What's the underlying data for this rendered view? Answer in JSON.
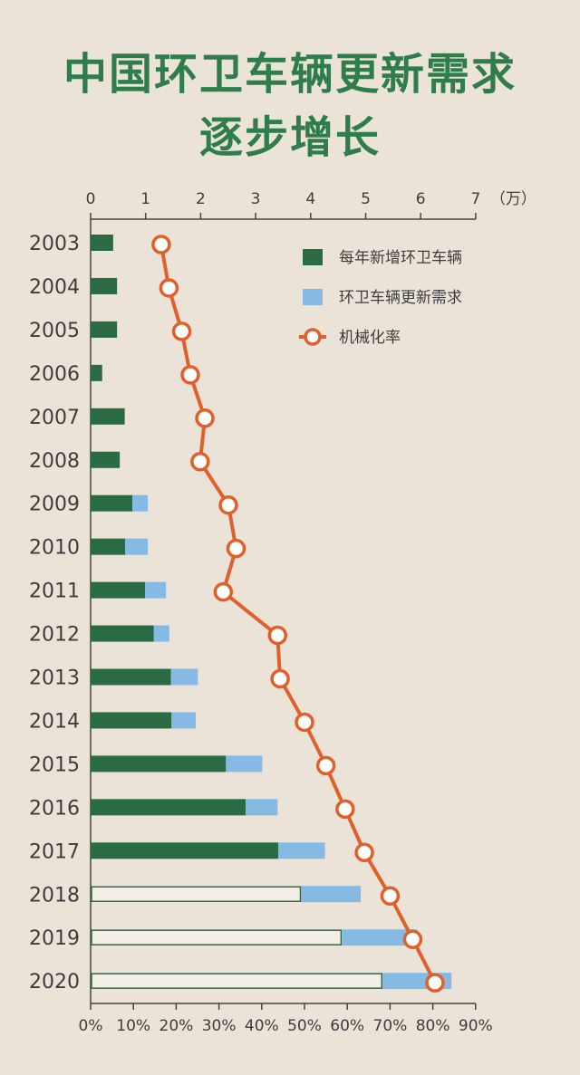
{
  "title_line1": "中国环卫车辆更新需求",
  "title_line2": "逐步增长",
  "colors": {
    "title": "#2e7d4a",
    "new_vehicles": "#2a6b45",
    "renewal": "#86b9e3",
    "rate": "#e0602b",
    "axis": "#444444",
    "background": "#ebe3d7"
  },
  "chart_data": {
    "type": "bar",
    "orientation": "horizontal",
    "stacked": true,
    "categories": [
      "2003",
      "2004",
      "2005",
      "2006",
      "2007",
      "2008",
      "2009",
      "2010",
      "2011",
      "2012",
      "2013",
      "2014",
      "2015",
      "2016",
      "2017",
      "2018",
      "2019",
      "2020"
    ],
    "top_axis": {
      "ticks": [
        "0",
        "1",
        "2",
        "3",
        "4",
        "5",
        "6",
        "7"
      ],
      "unit_label": "（万）",
      "range": [
        0,
        7
      ]
    },
    "bottom_axis": {
      "ticks": [
        "0%",
        "10%",
        "20%",
        "30%",
        "40%",
        "50%",
        "60%",
        "70%",
        "80%",
        "90%"
      ],
      "range": [
        0,
        90
      ]
    },
    "series": [
      {
        "name": "每年新增环卫车辆",
        "values": [
          0.41,
          0.48,
          0.48,
          0.21,
          0.62,
          0.53,
          0.76,
          0.63,
          0.99,
          1.15,
          1.46,
          1.47,
          2.46,
          2.82,
          3.41,
          3.83,
          4.57,
          5.31
        ],
        "projected_from": "2018"
      },
      {
        "name": "环卫车辆更新需求",
        "values": [
          0,
          0,
          0,
          0,
          0,
          0,
          0.28,
          0.41,
          0.38,
          0.28,
          0.49,
          0.44,
          0.66,
          0.58,
          0.85,
          1.08,
          1.37,
          1.25
        ]
      },
      {
        "name": "机械化率",
        "type": "line",
        "axis": "bottom",
        "values": [
          16.5,
          18.3,
          21.3,
          23.3,
          26.7,
          25.6,
          32.2,
          34.0,
          31.0,
          43.7,
          44.3,
          50.0,
          55.0,
          59.5,
          64.0,
          70.0,
          75.3,
          80.5
        ]
      }
    ],
    "legend_position": "top-right",
    "grid": false
  }
}
